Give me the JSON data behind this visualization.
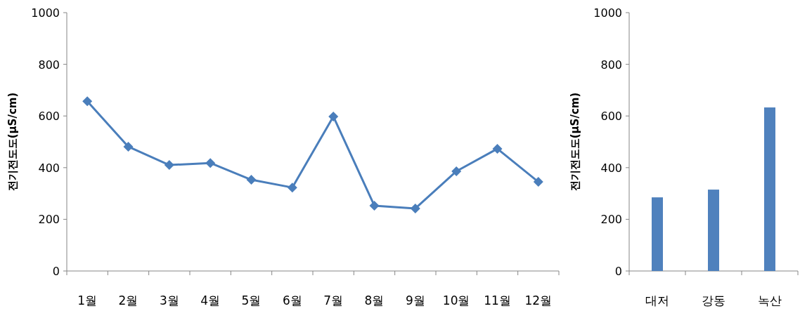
{
  "chart_data": [
    {
      "type": "line",
      "ylabel": "전기전도도(μS/cm)",
      "categories": [
        "1월",
        "2월",
        "3월",
        "4월",
        "5월",
        "6월",
        "7월",
        "8월",
        "9월",
        "10월",
        "11월",
        "12월"
      ],
      "series": [
        {
          "color": "#4a7ebb",
          "values": [
            657,
            481,
            410,
            418,
            353,
            323,
            598,
            253,
            242,
            386,
            473,
            345
          ]
        }
      ],
      "marker": "diamond",
      "line_style": "solid",
      "ylim": [
        0,
        1000
      ],
      "yticks": [
        0,
        200,
        400,
        600,
        800,
        1000
      ],
      "grid": false
    },
    {
      "type": "bar",
      "ylabel": "전기전도도(μS/cm)",
      "categories": [
        "대저",
        "강동",
        "녹산"
      ],
      "series": [
        {
          "color": "#4f81bd",
          "values": [
            285,
            315,
            633
          ]
        }
      ],
      "ylim": [
        0,
        1000
      ],
      "yticks": [
        0,
        200,
        400,
        600,
        800,
        1000
      ],
      "grid": false
    }
  ]
}
